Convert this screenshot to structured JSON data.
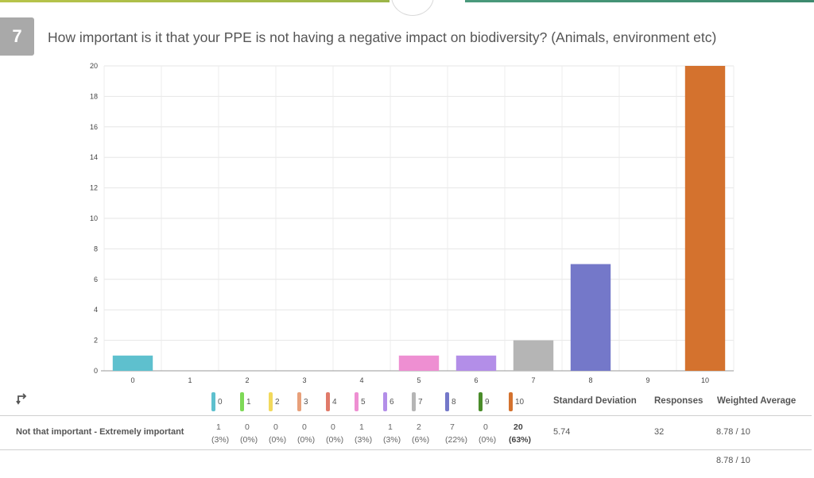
{
  "question": {
    "number": "7",
    "title": "How important is it that your PPE is not having a negative impact on biodiversity? (Animals, environment etc)"
  },
  "chart_data": {
    "type": "bar",
    "categories": [
      "0",
      "1",
      "2",
      "3",
      "4",
      "5",
      "6",
      "7",
      "8",
      "9",
      "10"
    ],
    "values": [
      1,
      0,
      0,
      0,
      0,
      1,
      1,
      2,
      7,
      0,
      20
    ],
    "colors": [
      "#5ec0ce",
      "#7ed957",
      "#f2d95c",
      "#e8a07a",
      "#e07a6a",
      "#ee8fd2",
      "#b38ee8",
      "#b5b5b5",
      "#7478c9",
      "#4a8c2a",
      "#d4722e"
    ],
    "yticks": [
      0,
      2,
      4,
      6,
      8,
      10,
      12,
      14,
      16,
      18,
      20
    ],
    "ylim": [
      0,
      20
    ],
    "grid": true
  },
  "table": {
    "headers": {
      "std_dev": "Standard Deviation",
      "responses": "Responses",
      "weighted_avg": "Weighted Average"
    },
    "row_label": "Not that important - Extremely important",
    "counts": [
      "1",
      "0",
      "0",
      "0",
      "0",
      "1",
      "1",
      "2",
      "7",
      "0",
      "20"
    ],
    "percents": [
      "(3%)",
      "(0%)",
      "(0%)",
      "(0%)",
      "(0%)",
      "(3%)",
      "(3%)",
      "(6%)",
      "(22%)",
      "(0%)",
      "(63%)"
    ],
    "std_dev": "5.74",
    "responses": "32",
    "weighted_avg": "8.78 / 10",
    "weighted_avg_total": "8.78 / 10"
  },
  "icons": {
    "swap": "swap-icon"
  }
}
